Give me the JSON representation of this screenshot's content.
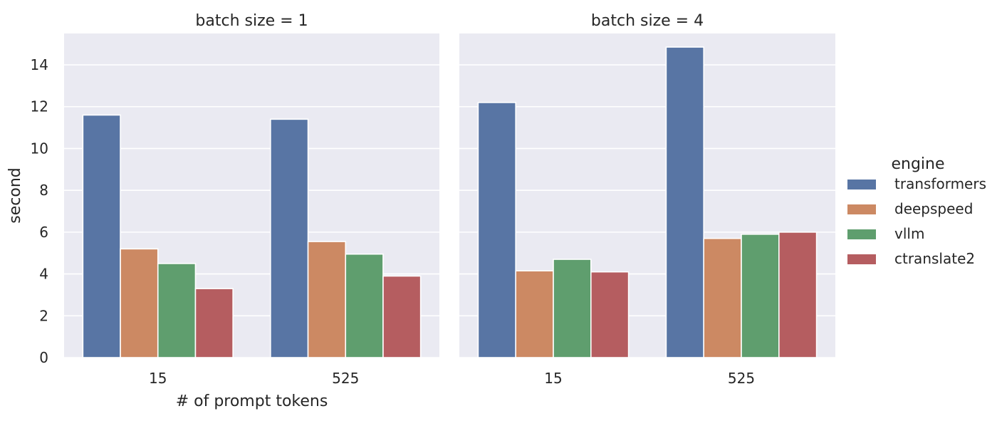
{
  "chart_data": {
    "type": "bar",
    "ylabel": "second",
    "xlabel": "# of prompt tokens",
    "ylim": [
      0,
      15.5
    ],
    "yticks": [
      0,
      2,
      4,
      6,
      8,
      10,
      12,
      14
    ],
    "grid": true,
    "categories": [
      "15",
      "525"
    ],
    "legend": {
      "title": "engine",
      "placement": "right",
      "entries": [
        {
          "name": "transformers",
          "color": "#5875a4"
        },
        {
          "name": "deepspeed",
          "color": "#cc8963"
        },
        {
          "name": "vllm",
          "color": "#5f9e6e"
        },
        {
          "name": "ctranslate2",
          "color": "#b55d60"
        }
      ]
    },
    "panels": [
      {
        "title": "batch size = 1",
        "series": [
          {
            "name": "transformers",
            "values": [
              11.6,
              11.4
            ]
          },
          {
            "name": "deepspeed",
            "values": [
              5.2,
              5.55
            ]
          },
          {
            "name": "vllm",
            "values": [
              4.5,
              4.95
            ]
          },
          {
            "name": "ctranslate2",
            "values": [
              3.3,
              3.9
            ]
          }
        ]
      },
      {
        "title": "batch size = 4",
        "series": [
          {
            "name": "transformers",
            "values": [
              12.2,
              14.85
            ]
          },
          {
            "name": "deepspeed",
            "values": [
              4.15,
              5.7
            ]
          },
          {
            "name": "vllm",
            "values": [
              4.7,
              5.9
            ]
          },
          {
            "name": "ctranslate2",
            "values": [
              4.1,
              6.0
            ]
          }
        ]
      }
    ]
  }
}
